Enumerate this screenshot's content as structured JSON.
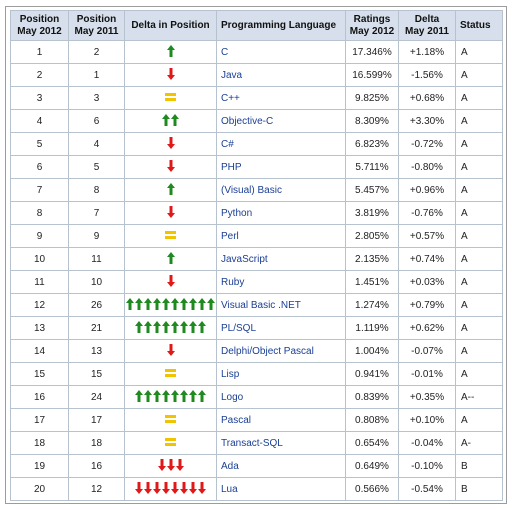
{
  "headers": {
    "pos2012": [
      "Position",
      "May 2012"
    ],
    "pos2011": [
      "Position",
      "May 2011"
    ],
    "delta_pos": "Delta in Position",
    "language": "Programming Language",
    "ratings": [
      "Ratings",
      "May 2012"
    ],
    "delta": [
      "Delta",
      "May 2011"
    ],
    "status": "Status"
  },
  "colors": {
    "up": "#1f8a1f",
    "down": "#e01818",
    "equal": "#f2c400",
    "header_bg": "#d6dfeb",
    "link": "#1b3f94"
  },
  "rows": [
    {
      "pos2012": "1",
      "pos2011": "2",
      "trend": "up",
      "count": 1,
      "language": "C",
      "rating": "17.346%",
      "delta": "+1.18%",
      "status": "A"
    },
    {
      "pos2012": "2",
      "pos2011": "1",
      "trend": "down",
      "count": 1,
      "language": "Java",
      "rating": "16.599%",
      "delta": "-1.56%",
      "status": "A"
    },
    {
      "pos2012": "3",
      "pos2011": "3",
      "trend": "equal",
      "count": 1,
      "language": "C++",
      "rating": "9.825%",
      "delta": "+0.68%",
      "status": "A"
    },
    {
      "pos2012": "4",
      "pos2011": "6",
      "trend": "up",
      "count": 2,
      "language": "Objective-C",
      "rating": "8.309%",
      "delta": "+3.30%",
      "status": "A"
    },
    {
      "pos2012": "5",
      "pos2011": "4",
      "trend": "down",
      "count": 1,
      "language": "C#",
      "rating": "6.823%",
      "delta": "-0.72%",
      "status": "A"
    },
    {
      "pos2012": "6",
      "pos2011": "5",
      "trend": "down",
      "count": 1,
      "language": "PHP",
      "rating": "5.711%",
      "delta": "-0.80%",
      "status": "A"
    },
    {
      "pos2012": "7",
      "pos2011": "8",
      "trend": "up",
      "count": 1,
      "language": "(Visual) Basic",
      "rating": "5.457%",
      "delta": "+0.96%",
      "status": "A"
    },
    {
      "pos2012": "8",
      "pos2011": "7",
      "trend": "down",
      "count": 1,
      "language": "Python",
      "rating": "3.819%",
      "delta": "-0.76%",
      "status": "A"
    },
    {
      "pos2012": "9",
      "pos2011": "9",
      "trend": "equal",
      "count": 1,
      "language": "Perl",
      "rating": "2.805%",
      "delta": "+0.57%",
      "status": "A"
    },
    {
      "pos2012": "10",
      "pos2011": "11",
      "trend": "up",
      "count": 1,
      "language": "JavaScript",
      "rating": "2.135%",
      "delta": "+0.74%",
      "status": "A"
    },
    {
      "pos2012": "11",
      "pos2011": "10",
      "trend": "down",
      "count": 1,
      "language": "Ruby",
      "rating": "1.451%",
      "delta": "+0.03%",
      "status": "A"
    },
    {
      "pos2012": "12",
      "pos2011": "26",
      "trend": "up",
      "count": 10,
      "language": "Visual Basic .NET",
      "rating": "1.274%",
      "delta": "+0.79%",
      "status": "A"
    },
    {
      "pos2012": "13",
      "pos2011": "21",
      "trend": "up",
      "count": 8,
      "language": "PL/SQL",
      "rating": "1.119%",
      "delta": "+0.62%",
      "status": "A"
    },
    {
      "pos2012": "14",
      "pos2011": "13",
      "trend": "down",
      "count": 1,
      "language": "Delphi/Object Pascal",
      "rating": "1.004%",
      "delta": "-0.07%",
      "status": "A"
    },
    {
      "pos2012": "15",
      "pos2011": "15",
      "trend": "equal",
      "count": 1,
      "language": "Lisp",
      "rating": "0.941%",
      "delta": "-0.01%",
      "status": "A"
    },
    {
      "pos2012": "16",
      "pos2011": "24",
      "trend": "up",
      "count": 8,
      "language": "Logo",
      "rating": "0.839%",
      "delta": "+0.35%",
      "status": "A--"
    },
    {
      "pos2012": "17",
      "pos2011": "17",
      "trend": "equal",
      "count": 1,
      "language": "Pascal",
      "rating": "0.808%",
      "delta": "+0.10%",
      "status": "A"
    },
    {
      "pos2012": "18",
      "pos2011": "18",
      "trend": "equal",
      "count": 1,
      "language": "Transact-SQL",
      "rating": "0.654%",
      "delta": "-0.04%",
      "status": "A-"
    },
    {
      "pos2012": "19",
      "pos2011": "16",
      "trend": "down",
      "count": 3,
      "language": "Ada",
      "rating": "0.649%",
      "delta": "-0.10%",
      "status": "B"
    },
    {
      "pos2012": "20",
      "pos2011": "12",
      "trend": "down",
      "count": 8,
      "language": "Lua",
      "rating": "0.566%",
      "delta": "-0.54%",
      "status": "B"
    }
  ]
}
